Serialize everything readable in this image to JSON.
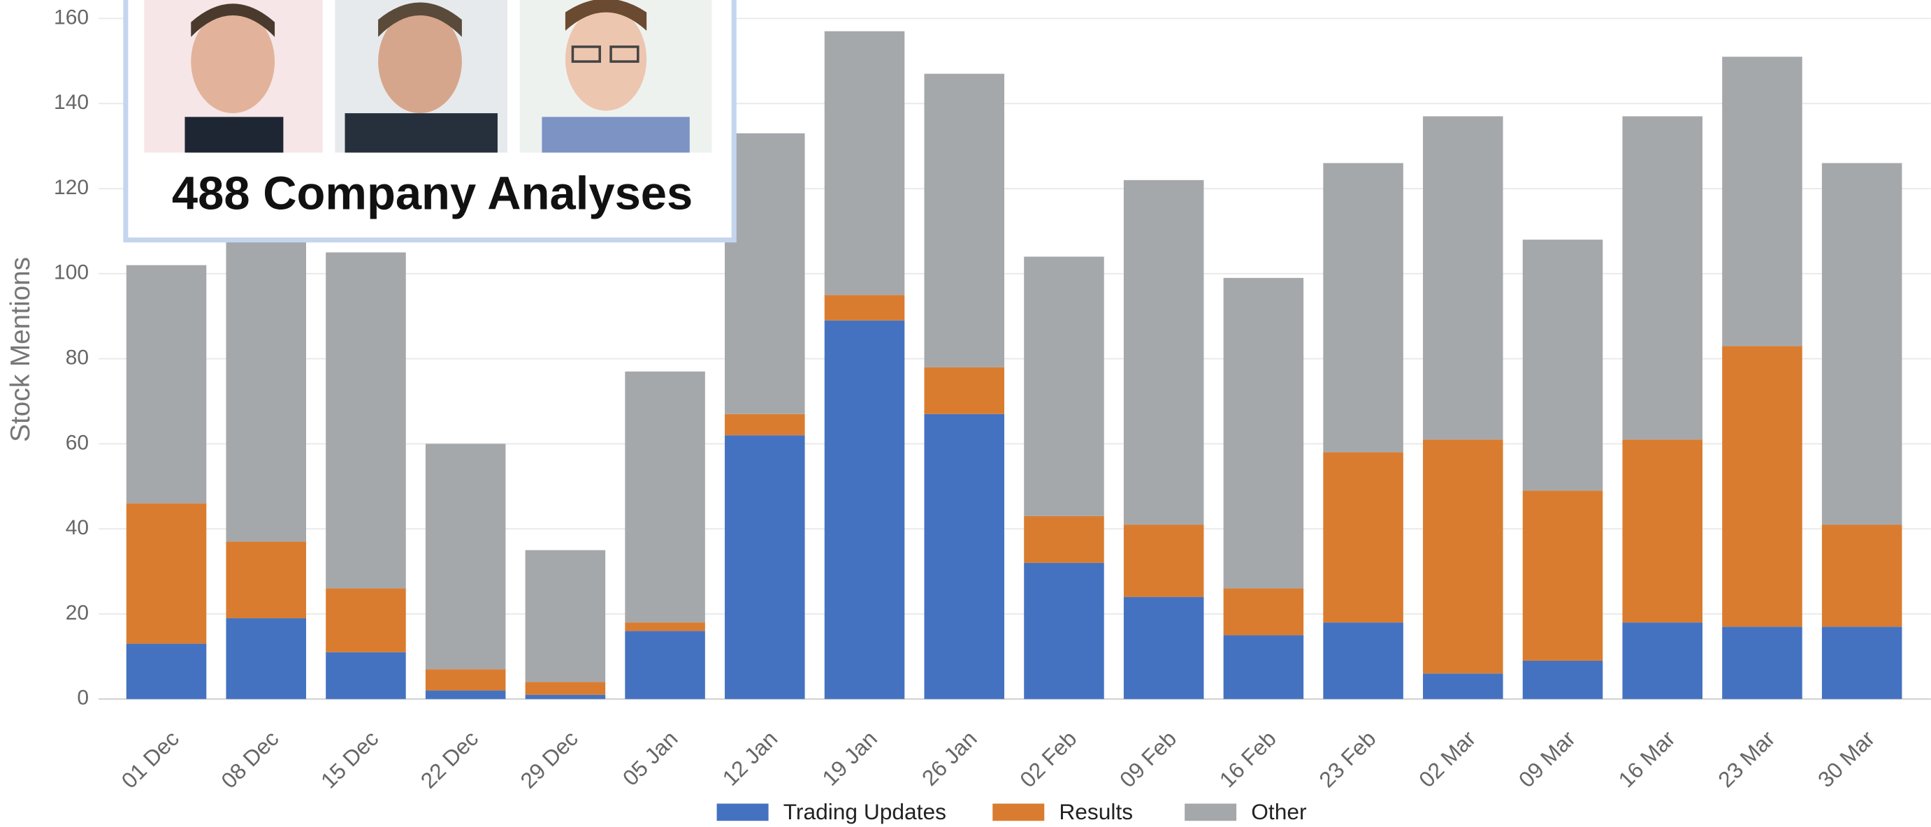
{
  "chart_data": {
    "type": "stacked_bar",
    "ylabel": "Stock Mentions",
    "categories": [
      "01 Dec",
      "08 Dec",
      "15 Dec",
      "22 Dec",
      "29 Dec",
      "05 Jan",
      "12 Jan",
      "19 Jan",
      "26 Jan",
      "02 Feb",
      "09 Feb",
      "16 Feb",
      "23 Feb",
      "02 Mar",
      "09 Mar",
      "16 Mar",
      "23 Mar",
      "30 Mar"
    ],
    "series": [
      {
        "name": "Trading Updates",
        "color": "#4472c0",
        "values": [
          13,
          19,
          11,
          2,
          1,
          16,
          62,
          89,
          67,
          32,
          24,
          15,
          18,
          6,
          9,
          18,
          17,
          17
        ]
      },
      {
        "name": "Results",
        "color": "#d97c30",
        "values": [
          33,
          18,
          15,
          5,
          3,
          2,
          5,
          6,
          11,
          11,
          17,
          11,
          40,
          55,
          40,
          43,
          66,
          24
        ]
      },
      {
        "name": "Other",
        "color": "#a5a8ab",
        "values": [
          56,
          73,
          79,
          53,
          31,
          59,
          66,
          62,
          69,
          61,
          81,
          73,
          68,
          76,
          59,
          76,
          68,
          85
        ]
      }
    ],
    "ylim": [
      0,
      160
    ],
    "yticks": [
      0,
      20,
      40,
      60,
      80,
      100,
      120,
      140,
      160
    ],
    "grid": true,
    "legend": "bottom"
  },
  "card": {
    "title": "488 Company Analyses"
  }
}
